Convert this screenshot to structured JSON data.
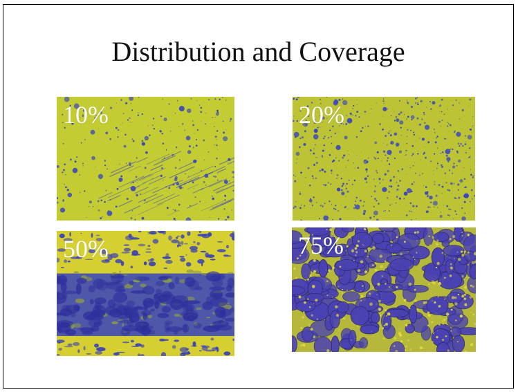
{
  "slide": {
    "title": "Distribution and Coverage"
  },
  "photos": [
    {
      "id": "photo-10",
      "label": "10%",
      "coverage": 0.1,
      "base_color": "#c3cc33",
      "spot_color": "#3f49b8"
    },
    {
      "id": "photo-20",
      "label": "20%",
      "coverage": 0.2,
      "base_color": "#bcc335",
      "spot_color": "#3a46bd"
    },
    {
      "id": "photo-50",
      "label": "50%",
      "coverage": 0.5,
      "base_color": "#d6cf32",
      "spot_color": "#3940b7"
    },
    {
      "id": "photo-75",
      "label": "75%",
      "coverage": 0.75,
      "base_color": "#9fa53e",
      "spot_color": "#4a41b3"
    }
  ]
}
